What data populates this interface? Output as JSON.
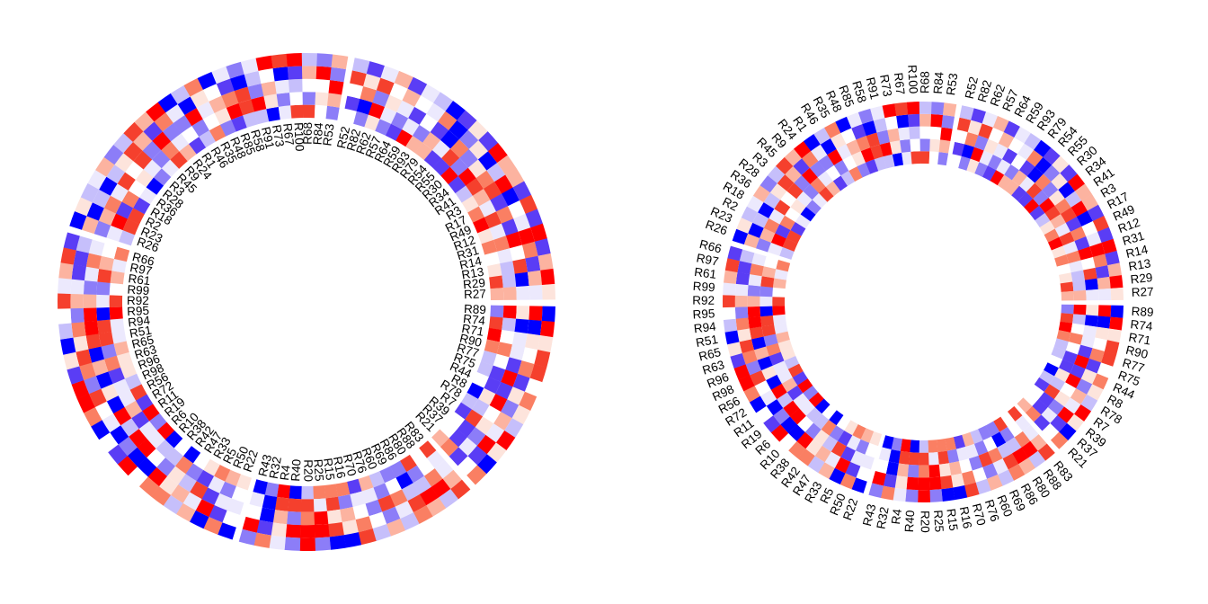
{
  "chart_data": [
    {
      "type": "heatmap",
      "layout": "circular",
      "label_position": "inside",
      "title": "",
      "tracks": 5,
      "color_scale": {
        "low": "#0000ff",
        "mid": "#ffffff",
        "high": "#ff0000"
      },
      "sectors": [
        [
          "R89",
          "R74",
          "R71",
          "R90",
          "R77",
          "R75",
          "R44",
          "R8",
          "R78",
          "R7",
          "R39",
          "R37",
          "R21"
        ],
        [
          "R83",
          "R88",
          "R80",
          "R86",
          "R69",
          "R60",
          "R76",
          "R70",
          "R16",
          "R15",
          "R25",
          "R20",
          "R40",
          "R4",
          "R32",
          "R43"
        ],
        [
          "R22",
          "R50",
          "R5",
          "R33",
          "R47",
          "R42",
          "R38",
          "R10",
          "R6",
          "R19",
          "R11",
          "R72",
          "R56",
          "R98",
          "R96",
          "R63",
          "R65",
          "R51",
          "R94",
          "R95",
          "R92",
          "R99",
          "R61",
          "R97",
          "R66"
        ],
        [
          "R26",
          "R23",
          "R2",
          "R18",
          "R36",
          "R28",
          "R3",
          "R45",
          "R9",
          "R24",
          "R1",
          "R46",
          "R35",
          "R48",
          "R85",
          "R58",
          "R91",
          "R73",
          "R67",
          "R100",
          "R68",
          "R84",
          "R53"
        ],
        [
          "R52",
          "R82",
          "R62",
          "R57",
          "R64",
          "R59",
          "R93",
          "R79",
          "R54",
          "R55",
          "R30",
          "R34",
          "R41",
          "R3",
          "R17",
          "R49",
          "R12",
          "R31",
          "R14",
          "R13",
          "R29",
          "R27"
        ]
      ]
    },
    {
      "type": "heatmap",
      "layout": "circular",
      "label_position": "outside",
      "title": "",
      "tracks": 5,
      "color_scale": {
        "low": "#0000ff",
        "mid": "#ffffff",
        "high": "#ff0000"
      },
      "sectors": [
        [
          "R89",
          "R74",
          "R71",
          "R90",
          "R77",
          "R75",
          "R44",
          "R8",
          "R78",
          "R7",
          "R39",
          "R37",
          "R21"
        ],
        [
          "R83",
          "R88",
          "R80",
          "R86",
          "R69",
          "R60",
          "R76",
          "R70",
          "R16",
          "R15",
          "R25",
          "R20",
          "R40",
          "R4",
          "R32",
          "R43"
        ],
        [
          "R22",
          "R50",
          "R5",
          "R33",
          "R47",
          "R42",
          "R38",
          "R10",
          "R6",
          "R19",
          "R11",
          "R72",
          "R56",
          "R98",
          "R96",
          "R63",
          "R65",
          "R51",
          "R94",
          "R95",
          "R92",
          "R99",
          "R61",
          "R97",
          "R66"
        ],
        [
          "R26",
          "R23",
          "R2",
          "R18",
          "R36",
          "R28",
          "R3",
          "R45",
          "R9",
          "R24",
          "R1",
          "R46",
          "R35",
          "R48",
          "R85",
          "R58",
          "R91",
          "R73",
          "R67",
          "R100",
          "R68",
          "R84",
          "R53"
        ],
        [
          "R52",
          "R82",
          "R62",
          "R57",
          "R64",
          "R59",
          "R93",
          "R79",
          "R54",
          "R55",
          "R30",
          "R34",
          "R41",
          "R3",
          "R17",
          "R49",
          "R12",
          "R31",
          "R14",
          "R13",
          "R29",
          "R27"
        ]
      ]
    }
  ]
}
